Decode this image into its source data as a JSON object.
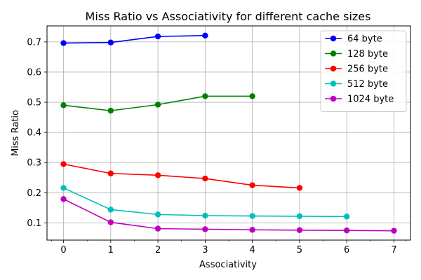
{
  "chart_data": {
    "type": "line",
    "title": "Miss Ratio vs Associativity for different cache sizes",
    "xlabel": "Associativity",
    "ylabel": "Miss Ratio",
    "xlim": [
      -0.35,
      7.35
    ],
    "ylim": [
      0.043,
      0.753
    ],
    "xticks": [
      0,
      1,
      2,
      3,
      4,
      5,
      6,
      7
    ],
    "yticks": [
      0.1,
      0.2,
      0.3,
      0.4,
      0.5,
      0.6,
      0.7
    ],
    "grid": true,
    "legend_position": "top-right",
    "series": [
      {
        "name": "64 byte",
        "color": "#0000ff",
        "x": [
          0,
          1,
          2,
          3
        ],
        "values": [
          0.696,
          0.698,
          0.718,
          0.721
        ]
      },
      {
        "name": "128 byte",
        "color": "#008000",
        "x": [
          0,
          1,
          2,
          3,
          4
        ],
        "values": [
          0.49,
          0.472,
          0.492,
          0.52,
          0.52
        ]
      },
      {
        "name": "256 byte",
        "color": "#ff0000",
        "x": [
          0,
          1,
          2,
          3,
          4,
          5
        ],
        "values": [
          0.295,
          0.264,
          0.258,
          0.247,
          0.225,
          0.216
        ]
      },
      {
        "name": "512 byte",
        "color": "#00bfbf",
        "x": [
          0,
          1,
          2,
          3,
          4,
          5,
          6
        ],
        "values": [
          0.216,
          0.144,
          0.128,
          0.124,
          0.123,
          0.122,
          0.121
        ]
      },
      {
        "name": "1024 byte",
        "color": "#bf00bf",
        "x": [
          0,
          1,
          2,
          3,
          4,
          5,
          6,
          7
        ],
        "values": [
          0.179,
          0.102,
          0.081,
          0.079,
          0.077,
          0.076,
          0.075,
          0.074
        ]
      }
    ]
  }
}
